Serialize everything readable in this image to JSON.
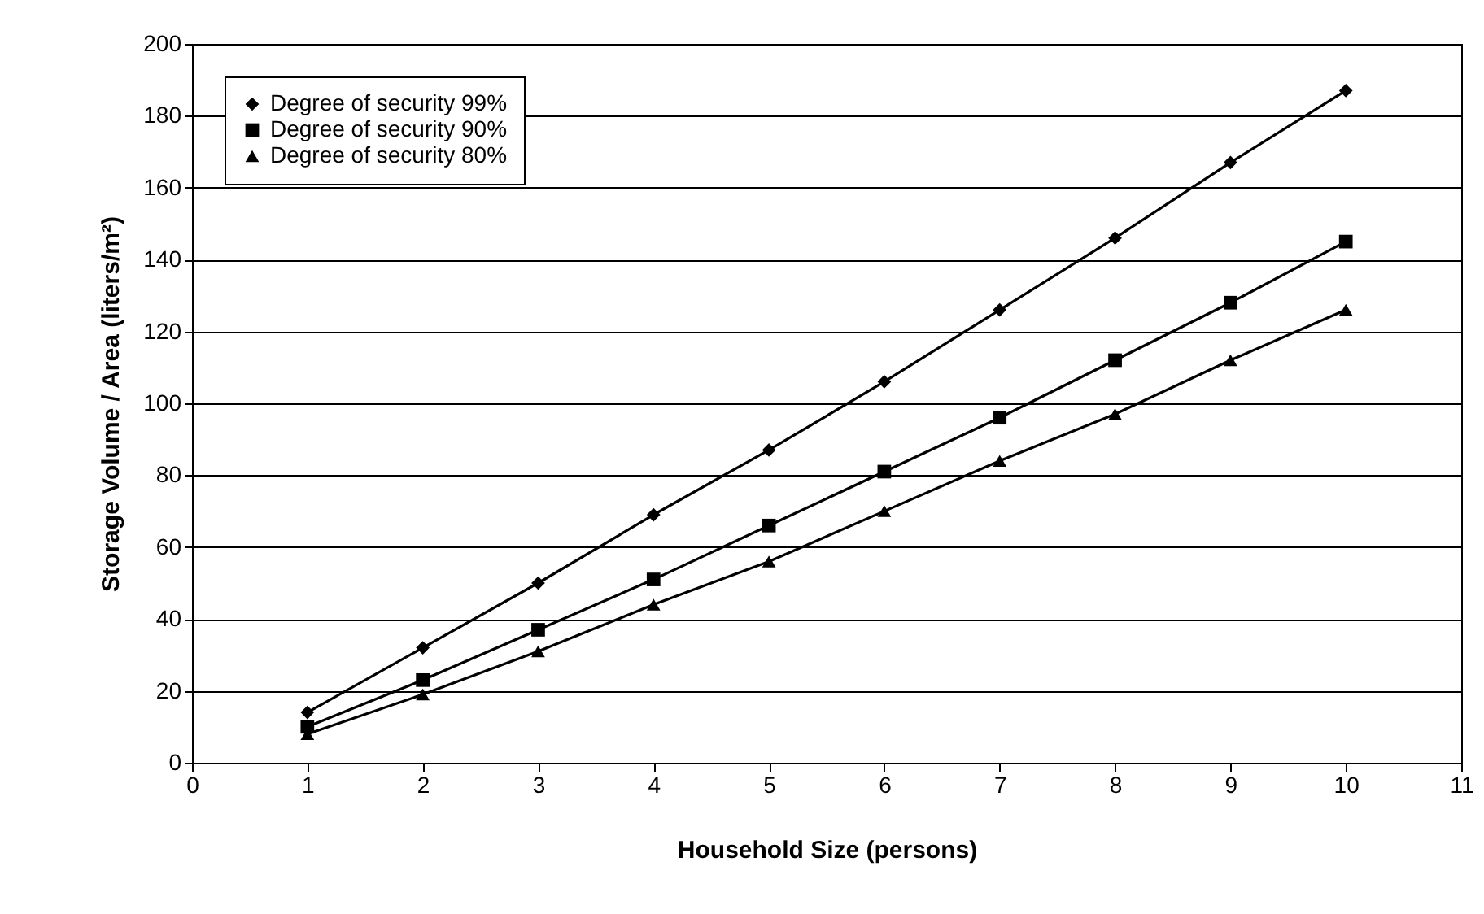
{
  "chart_data": {
    "type": "line",
    "xlabel": "Household Size (persons)",
    "ylabel": "Storage Volume / Area (liters/m²)",
    "x": [
      1,
      2,
      3,
      4,
      5,
      6,
      7,
      8,
      9,
      10
    ],
    "series": [
      {
        "name": "Degree of security 99%",
        "color": "#000000",
        "marker": "diamond",
        "values": [
          14,
          32,
          50,
          69,
          87,
          106,
          126,
          146,
          167,
          187
        ]
      },
      {
        "name": "Degree of security 90%",
        "color": "#000000",
        "marker": "square",
        "values": [
          10,
          23,
          37,
          51,
          66,
          81,
          96,
          112,
          128,
          145
        ]
      },
      {
        "name": "Degree of security 80%",
        "color": "#000000",
        "marker": "triangle",
        "values": [
          8,
          19,
          31,
          44,
          56,
          70,
          84,
          97,
          112,
          126
        ]
      }
    ],
    "xlim": [
      0,
      11
    ],
    "xticks": [
      0,
      1,
      2,
      3,
      4,
      5,
      6,
      7,
      8,
      9,
      10,
      11
    ],
    "ylim": [
      0,
      200
    ],
    "yticks": [
      0,
      20,
      40,
      60,
      80,
      100,
      120,
      140,
      160,
      180,
      200
    ],
    "grid": "y",
    "legend": "top left",
    "line_style": "solid"
  }
}
